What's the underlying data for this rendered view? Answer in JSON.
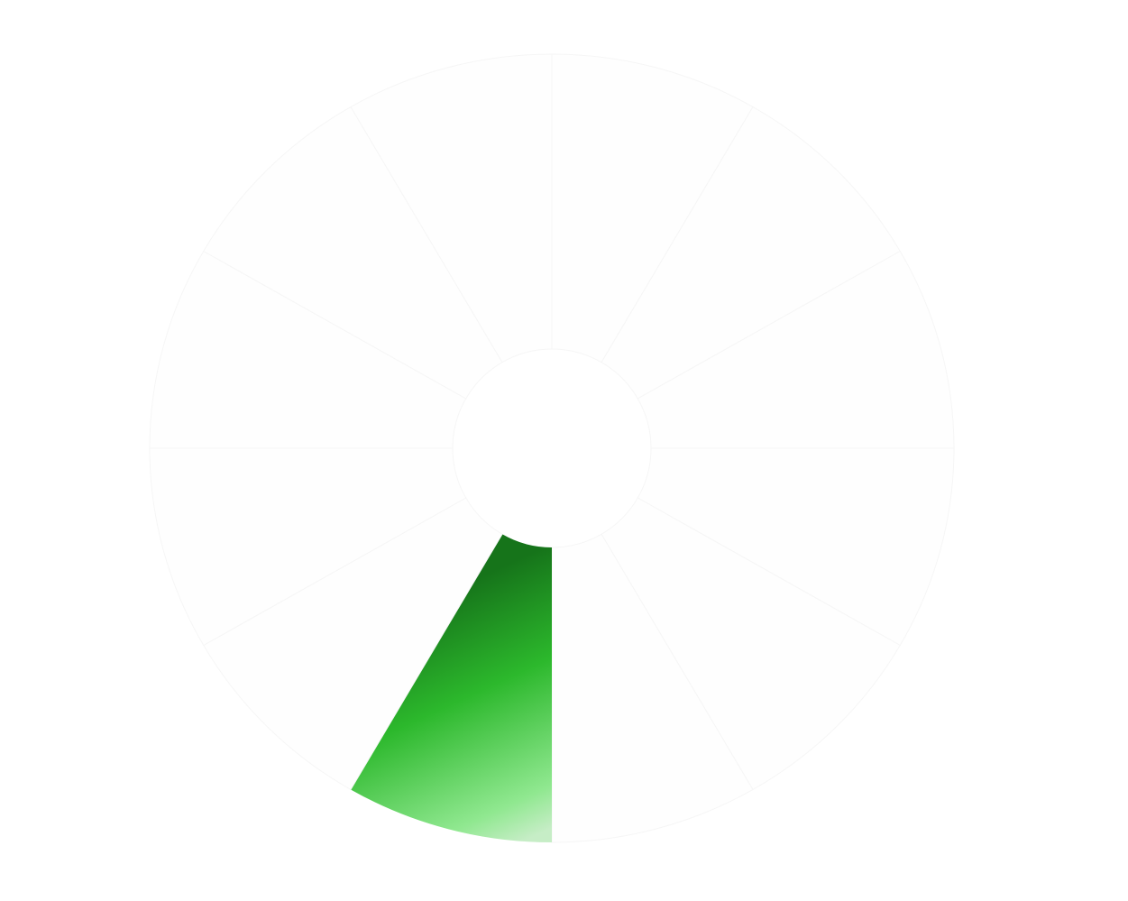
{
  "chart_data": {
    "type": "pie",
    "variant": "donut",
    "title": "",
    "legend": "none",
    "grid": false,
    "colors": {
      "highlight": "#2cb82c",
      "highlight_dark": "#16741a",
      "highlight_light": "#90e890",
      "others": "#fefefe"
    },
    "slices": [
      {
        "value": 1,
        "color_key": "others"
      },
      {
        "value": 1,
        "color_key": "others"
      },
      {
        "value": 1,
        "color_key": "others"
      },
      {
        "value": 1,
        "color_key": "others"
      },
      {
        "value": 1,
        "color_key": "others"
      },
      {
        "value": 1,
        "color_key": "others"
      },
      {
        "value": 1,
        "color_key": "highlight"
      },
      {
        "value": 1,
        "color_key": "others"
      },
      {
        "value": 1,
        "color_key": "others"
      },
      {
        "value": 1,
        "color_key": "others"
      },
      {
        "value": 1,
        "color_key": "others"
      },
      {
        "value": 1,
        "color_key": "others"
      }
    ]
  }
}
